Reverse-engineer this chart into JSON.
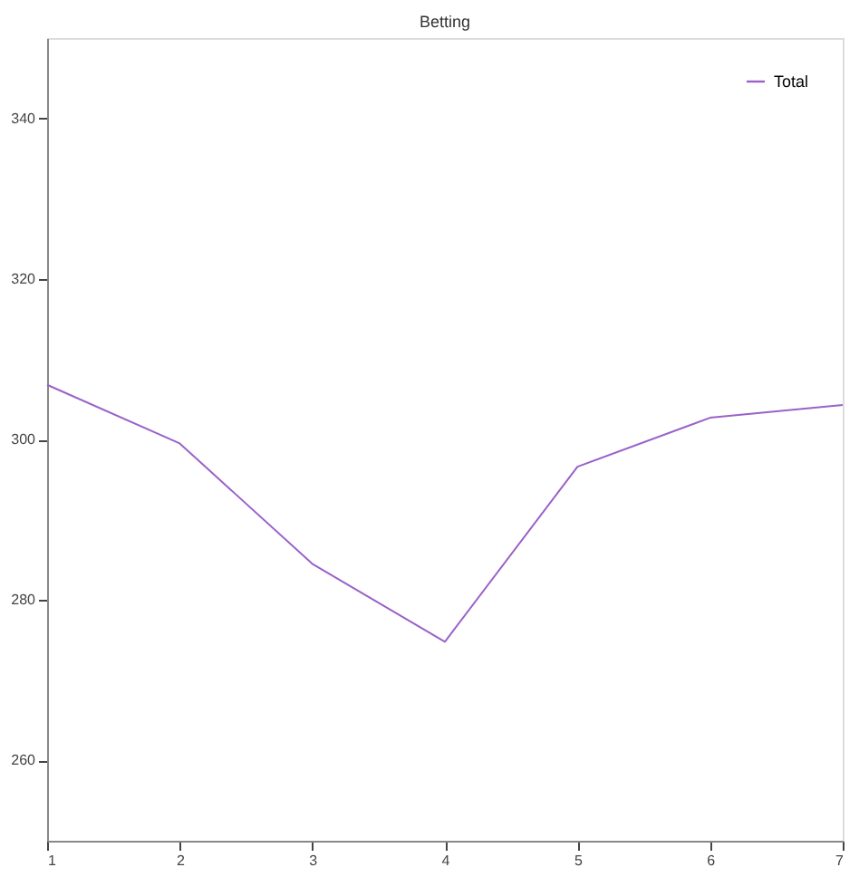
{
  "chart_data": {
    "type": "line",
    "title": "Betting",
    "x": [
      1,
      2,
      3,
      4,
      5,
      6,
      7
    ],
    "series": [
      {
        "name": "Total",
        "color": "#9a62c8",
        "values": [
          306.8,
          299.5,
          284.5,
          274.8,
          296.6,
          302.7,
          304.3
        ]
      }
    ],
    "xlim": [
      1,
      7
    ],
    "xticks": [
      1,
      2,
      3,
      4,
      5,
      6,
      7
    ],
    "ylim": [
      250,
      350
    ],
    "yticks": [
      260,
      280,
      300,
      320,
      340
    ],
    "grid": false,
    "legend": "top right",
    "marker": "none",
    "line_style": "solid"
  }
}
